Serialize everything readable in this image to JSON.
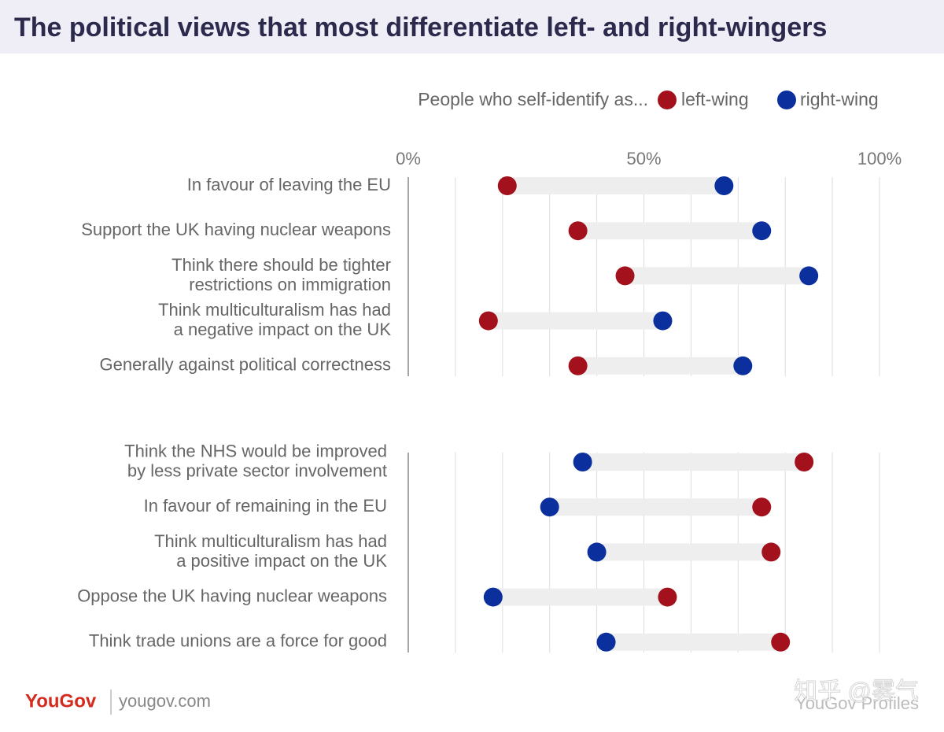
{
  "chart_data": {
    "type": "dumbbell",
    "title": "The political views that most differentiate left- and right-wingers",
    "legend_title": "People who self-identify as...",
    "categories": [
      "In favour of leaving the EU",
      "Support the UK having nuclear weapons",
      "Think there should be tighter\nrestrictions on immigration",
      "Think multiculturalism has had\na negative impact on the UK",
      "Generally against political correctness",
      null,
      "Think the NHS would be improved\nby less private sector involvement",
      "In favour of remaining in the EU",
      "Think multiculturalism has had\na positive impact on the UK",
      "Oppose the UK having nuclear weapons",
      "Think trade unions are a force for good"
    ],
    "series": [
      {
        "name": "left-wing",
        "color": "#a3121c",
        "values": [
          21,
          36,
          46,
          17,
          36,
          null,
          84,
          75,
          77,
          55,
          79
        ]
      },
      {
        "name": "right-wing",
        "color": "#0c2f9e",
        "values": [
          67,
          75,
          85,
          54,
          71,
          null,
          37,
          30,
          40,
          18,
          42
        ]
      }
    ],
    "xlim": [
      0,
      100
    ],
    "xticks": [
      {
        "value": 0,
        "label": "0%"
      },
      {
        "value": 50,
        "label": "50%"
      },
      {
        "value": 100,
        "label": "100%"
      }
    ],
    "xgrid": [
      0,
      10,
      20,
      30,
      40,
      50,
      60,
      70,
      80,
      90,
      100
    ],
    "source": "YouGov Profiles",
    "brand": "YouGov",
    "website": "yougov.com",
    "watermark": "知乎 @雾气"
  }
}
